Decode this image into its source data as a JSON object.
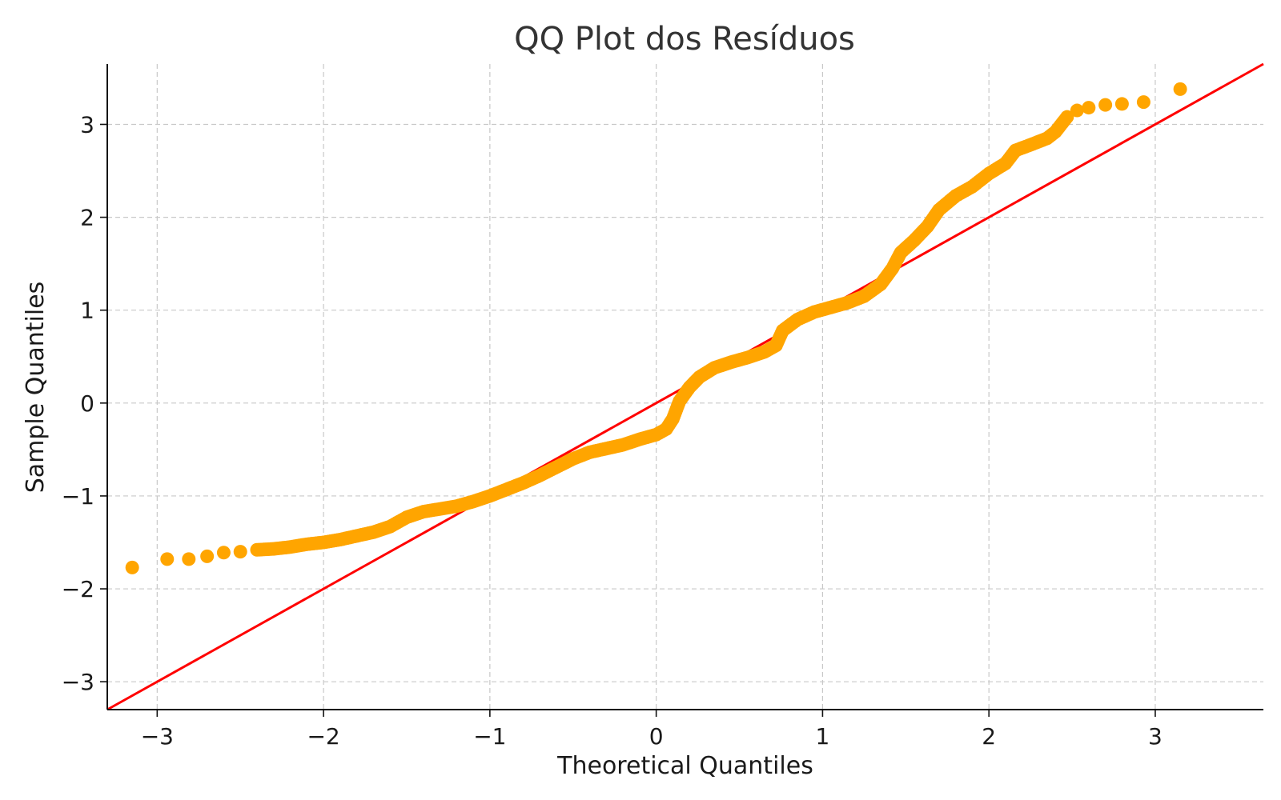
{
  "chart_data": {
    "type": "scatter",
    "title": "QQ Plot dos Resíduos",
    "xlabel": "Theoretical Quantiles",
    "ylabel": "Sample Quantiles",
    "xlim": [
      -3.3,
      3.65
    ],
    "ylim": [
      -3.3,
      3.65
    ],
    "xticks": [
      -3,
      -2,
      -1,
      0,
      1,
      2,
      3
    ],
    "yticks": [
      -3,
      -2,
      -1,
      0,
      1,
      2,
      3
    ],
    "xtick_labels": [
      "−3",
      "−2",
      "−1",
      "0",
      "1",
      "2",
      "3"
    ],
    "ytick_labels": [
      "−3",
      "−2",
      "−1",
      "0",
      "1",
      "2",
      "3"
    ],
    "grid": true,
    "colors": {
      "points": "#FFA500",
      "reference_line": "#FF0000"
    },
    "reference_line": {
      "slope": 1,
      "intercept": 0
    },
    "quantile_curve": [
      [
        -3.15,
        -1.77
      ],
      [
        -2.94,
        -1.68
      ],
      [
        -2.81,
        -1.68
      ],
      [
        -2.7,
        -1.65
      ],
      [
        -2.6,
        -1.61
      ],
      [
        -2.5,
        -1.6
      ],
      [
        -2.4,
        -1.58
      ],
      [
        -2.3,
        -1.57
      ],
      [
        -2.2,
        -1.55
      ],
      [
        -2.1,
        -1.52
      ],
      [
        -2.0,
        -1.5
      ],
      [
        -1.9,
        -1.47
      ],
      [
        -1.8,
        -1.43
      ],
      [
        -1.7,
        -1.39
      ],
      [
        -1.6,
        -1.33
      ],
      [
        -1.5,
        -1.23
      ],
      [
        -1.4,
        -1.17
      ],
      [
        -1.3,
        -1.14
      ],
      [
        -1.2,
        -1.11
      ],
      [
        -1.1,
        -1.06
      ],
      [
        -1.0,
        -1.0
      ],
      [
        -0.9,
        -0.93
      ],
      [
        -0.8,
        -0.86
      ],
      [
        -0.7,
        -0.78
      ],
      [
        -0.6,
        -0.69
      ],
      [
        -0.5,
        -0.6
      ],
      [
        -0.4,
        -0.53
      ],
      [
        -0.3,
        -0.49
      ],
      [
        -0.2,
        -0.45
      ],
      [
        -0.1,
        -0.39
      ],
      [
        0.0,
        -0.34
      ],
      [
        0.06,
        -0.28
      ],
      [
        0.1,
        -0.17
      ],
      [
        0.14,
        0.02
      ],
      [
        0.2,
        0.17
      ],
      [
        0.26,
        0.28
      ],
      [
        0.35,
        0.38
      ],
      [
        0.45,
        0.44
      ],
      [
        0.55,
        0.49
      ],
      [
        0.65,
        0.55
      ],
      [
        0.72,
        0.62
      ],
      [
        0.76,
        0.78
      ],
      [
        0.85,
        0.9
      ],
      [
        0.95,
        0.98
      ],
      [
        1.05,
        1.03
      ],
      [
        1.15,
        1.08
      ],
      [
        1.25,
        1.15
      ],
      [
        1.35,
        1.28
      ],
      [
        1.42,
        1.45
      ],
      [
        1.47,
        1.62
      ],
      [
        1.55,
        1.75
      ],
      [
        1.63,
        1.9
      ],
      [
        1.7,
        2.08
      ],
      [
        1.8,
        2.23
      ],
      [
        1.9,
        2.33
      ],
      [
        2.0,
        2.47
      ],
      [
        2.1,
        2.58
      ],
      [
        2.16,
        2.72
      ],
      [
        2.25,
        2.78
      ],
      [
        2.35,
        2.85
      ],
      [
        2.4,
        2.92
      ],
      [
        2.47,
        3.08
      ],
      [
        2.53,
        3.15
      ],
      [
        2.6,
        3.18
      ],
      [
        2.7,
        3.21
      ],
      [
        2.8,
        3.22
      ],
      [
        2.93,
        3.24
      ],
      [
        3.15,
        3.38
      ]
    ]
  }
}
